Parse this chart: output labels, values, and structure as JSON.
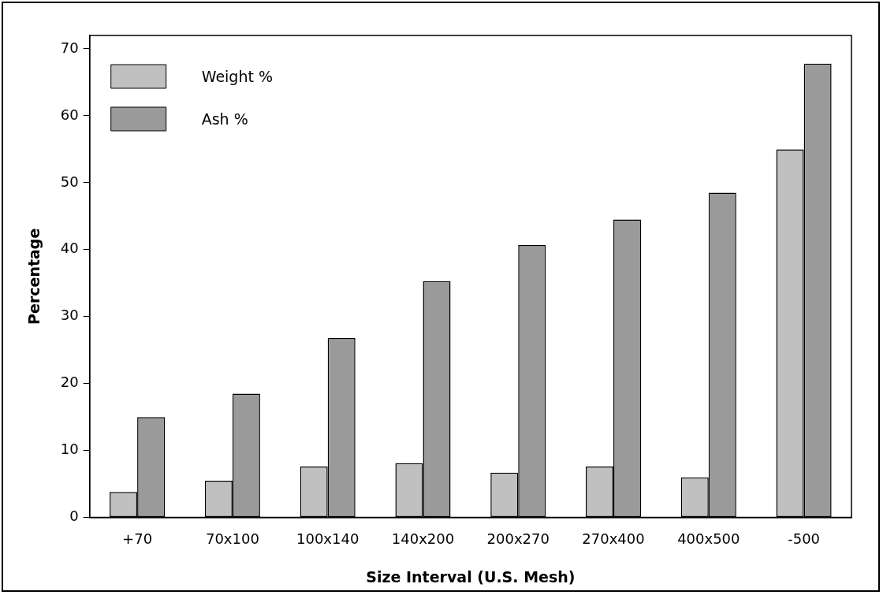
{
  "chart_data": {
    "type": "bar",
    "xlabel": "Size Interval (U.S. Mesh)",
    "ylabel": "Percentage",
    "categories": [
      "+70",
      "70x100",
      "100x140",
      "140x200",
      "200x270",
      "270x400",
      "400x500",
      "-500"
    ],
    "series": [
      {
        "name": "Weight %",
        "color": "#c0c0c0",
        "values": [
          3.8,
          5.5,
          7.6,
          8.1,
          6.7,
          7.6,
          6.0,
          55.0
        ]
      },
      {
        "name": "Ash %",
        "color": "#9a9a9a",
        "values": [
          15.0,
          18.5,
          26.8,
          35.3,
          40.7,
          44.5,
          48.5,
          67.8
        ]
      }
    ],
    "ylim": [
      0,
      72
    ],
    "yticks": [
      0,
      10,
      20,
      30,
      40,
      50,
      60,
      70
    ],
    "grid": false,
    "legend": "top left"
  }
}
